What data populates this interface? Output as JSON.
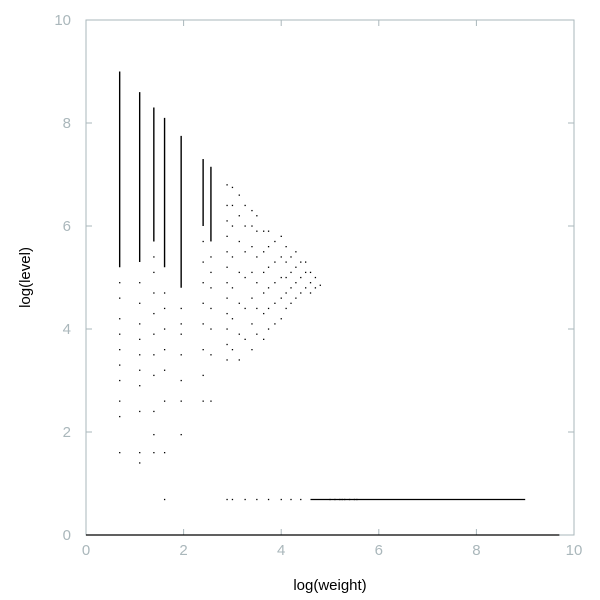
{
  "chart_data": {
    "type": "scatter",
    "title": "",
    "xlabel": "log(weight)",
    "ylabel": "log(level)",
    "xlim": [
      0,
      10
    ],
    "ylim": [
      0,
      10
    ],
    "xticks": [
      0,
      2,
      4,
      6,
      8,
      10
    ],
    "yticks": [
      0,
      2,
      4,
      6,
      8,
      10
    ],
    "x_tick_labels": [
      "0",
      "2",
      "4",
      "6",
      "8",
      "10"
    ],
    "y_tick_labels": [
      "0",
      "2",
      "4",
      "6",
      "8",
      "10"
    ],
    "grid": false,
    "legend": "none",
    "colors": {
      "points": "#000000",
      "frame": "#aab7bb",
      "tick_text": "#aab7bb"
    },
    "columns": [
      {
        "x": 0.69,
        "ymin": 5.2,
        "ymax": 9.0
      },
      {
        "x": 1.1,
        "ymin": 5.3,
        "ymax": 8.6
      },
      {
        "x": 1.39,
        "ymin": 5.7,
        "ymax": 8.3
      },
      {
        "x": 1.61,
        "ymin": 5.2,
        "ymax": 8.1
      },
      {
        "x": 1.95,
        "ymin": 4.8,
        "ymax": 7.75
      },
      {
        "x": 2.4,
        "ymin": 6.0,
        "ymax": 7.3
      },
      {
        "x": 2.56,
        "ymin": 5.7,
        "ymax": 7.15
      }
    ],
    "bands": [
      {
        "xmin": 4.6,
        "xmax": 9.0,
        "y": 0.69
      },
      {
        "xmin": 0.0,
        "xmax": 9.7,
        "y": 0.0
      }
    ],
    "sparse_points": [
      [
        0.69,
        1.6
      ],
      [
        0.69,
        2.3
      ],
      [
        0.69,
        2.6
      ],
      [
        0.69,
        3.0
      ],
      [
        0.69,
        3.3
      ],
      [
        0.69,
        3.6
      ],
      [
        0.69,
        3.9
      ],
      [
        0.69,
        4.2
      ],
      [
        0.69,
        4.6
      ],
      [
        0.69,
        4.9
      ],
      [
        1.1,
        1.4
      ],
      [
        1.1,
        1.6
      ],
      [
        1.1,
        2.4
      ],
      [
        1.1,
        2.9
      ],
      [
        1.1,
        3.2
      ],
      [
        1.1,
        3.5
      ],
      [
        1.1,
        3.8
      ],
      [
        1.1,
        4.1
      ],
      [
        1.1,
        4.5
      ],
      [
        1.1,
        4.9
      ],
      [
        1.39,
        1.6
      ],
      [
        1.39,
        1.95
      ],
      [
        1.39,
        2.4
      ],
      [
        1.39,
        3.1
      ],
      [
        1.39,
        3.5
      ],
      [
        1.39,
        3.9
      ],
      [
        1.39,
        4.3
      ],
      [
        1.39,
        4.7
      ],
      [
        1.39,
        5.1
      ],
      [
        1.39,
        5.4
      ],
      [
        1.61,
        0.69
      ],
      [
        1.61,
        1.6
      ],
      [
        1.61,
        2.6
      ],
      [
        1.61,
        3.2
      ],
      [
        1.61,
        3.6
      ],
      [
        1.61,
        4.0
      ],
      [
        1.61,
        4.4
      ],
      [
        1.61,
        4.7
      ],
      [
        1.95,
        1.95
      ],
      [
        1.95,
        2.6
      ],
      [
        1.95,
        3.0
      ],
      [
        1.95,
        3.5
      ],
      [
        1.95,
        3.9
      ],
      [
        1.95,
        4.1
      ],
      [
        1.95,
        4.4
      ],
      [
        2.4,
        2.6
      ],
      [
        2.4,
        3.1
      ],
      [
        2.4,
        3.6
      ],
      [
        2.4,
        4.1
      ],
      [
        2.4,
        4.5
      ],
      [
        2.4,
        4.9
      ],
      [
        2.4,
        5.3
      ],
      [
        2.4,
        5.7
      ],
      [
        2.56,
        2.6
      ],
      [
        2.56,
        3.5
      ],
      [
        2.56,
        4.0
      ],
      [
        2.56,
        4.4
      ],
      [
        2.56,
        4.8
      ],
      [
        2.56,
        5.1
      ],
      [
        2.56,
        5.4
      ],
      [
        2.89,
        0.69
      ],
      [
        2.89,
        3.4
      ],
      [
        2.89,
        3.7
      ],
      [
        2.89,
        4.0
      ],
      [
        2.89,
        4.3
      ],
      [
        2.89,
        4.6
      ],
      [
        2.89,
        4.9
      ],
      [
        2.89,
        5.2
      ],
      [
        2.89,
        5.5
      ],
      [
        2.89,
        5.8
      ],
      [
        2.89,
        6.1
      ],
      [
        2.89,
        6.4
      ],
      [
        2.89,
        6.8
      ],
      [
        3.0,
        0.69
      ],
      [
        3.0,
        3.6
      ],
      [
        3.0,
        4.2
      ],
      [
        3.0,
        4.8
      ],
      [
        3.0,
        5.4
      ],
      [
        3.0,
        6.0
      ],
      [
        3.0,
        6.4
      ],
      [
        3.0,
        6.75
      ],
      [
        3.14,
        3.4
      ],
      [
        3.14,
        3.9
      ],
      [
        3.14,
        4.5
      ],
      [
        3.14,
        5.1
      ],
      [
        3.14,
        5.7
      ],
      [
        3.14,
        6.2
      ],
      [
        3.14,
        6.6
      ],
      [
        3.26,
        0.69
      ],
      [
        3.26,
        3.8
      ],
      [
        3.26,
        4.4
      ],
      [
        3.26,
        5.0
      ],
      [
        3.26,
        5.5
      ],
      [
        3.26,
        6.0
      ],
      [
        3.26,
        6.4
      ],
      [
        3.4,
        3.6
      ],
      [
        3.4,
        4.1
      ],
      [
        3.4,
        4.6
      ],
      [
        3.4,
        5.1
      ],
      [
        3.4,
        5.6
      ],
      [
        3.4,
        6.0
      ],
      [
        3.4,
        6.3
      ],
      [
        3.5,
        0.69
      ],
      [
        3.5,
        3.9
      ],
      [
        3.5,
        4.4
      ],
      [
        3.5,
        4.9
      ],
      [
        3.5,
        5.4
      ],
      [
        3.5,
        5.9
      ],
      [
        3.5,
        6.2
      ],
      [
        3.64,
        3.8
      ],
      [
        3.64,
        4.3
      ],
      [
        3.64,
        4.7
      ],
      [
        3.64,
        5.1
      ],
      [
        3.64,
        5.5
      ],
      [
        3.64,
        5.9
      ],
      [
        3.74,
        0.69
      ],
      [
        3.74,
        4.0
      ],
      [
        3.74,
        4.4
      ],
      [
        3.74,
        4.8
      ],
      [
        3.74,
        5.2
      ],
      [
        3.74,
        5.6
      ],
      [
        3.74,
        5.9
      ],
      [
        3.87,
        4.1
      ],
      [
        3.87,
        4.5
      ],
      [
        3.87,
        4.9
      ],
      [
        3.87,
        5.3
      ],
      [
        3.87,
        5.7
      ],
      [
        4.0,
        0.69
      ],
      [
        4.0,
        4.2
      ],
      [
        4.0,
        4.6
      ],
      [
        4.0,
        5.0
      ],
      [
        4.0,
        5.4
      ],
      [
        4.0,
        5.8
      ],
      [
        4.1,
        4.4
      ],
      [
        4.1,
        4.7
      ],
      [
        4.1,
        5.0
      ],
      [
        4.1,
        5.3
      ],
      [
        4.1,
        5.6
      ],
      [
        4.2,
        0.69
      ],
      [
        4.2,
        4.5
      ],
      [
        4.2,
        4.8
      ],
      [
        4.2,
        5.1
      ],
      [
        4.2,
        5.4
      ],
      [
        4.3,
        4.6
      ],
      [
        4.3,
        4.9
      ],
      [
        4.3,
        5.2
      ],
      [
        4.3,
        5.5
      ],
      [
        4.4,
        0.69
      ],
      [
        4.4,
        4.7
      ],
      [
        4.4,
        5.0
      ],
      [
        4.4,
        5.3
      ],
      [
        4.5,
        4.8
      ],
      [
        4.5,
        5.1
      ],
      [
        4.5,
        5.3
      ],
      [
        4.6,
        4.7
      ],
      [
        4.6,
        4.9
      ],
      [
        4.6,
        5.1
      ],
      [
        4.7,
        4.8
      ],
      [
        4.7,
        5.0
      ],
      [
        4.8,
        4.85
      ],
      [
        5.0,
        0.69
      ],
      [
        5.1,
        0.69
      ],
      [
        5.2,
        0.69
      ],
      [
        5.25,
        0.69
      ],
      [
        5.3,
        0.69
      ],
      [
        5.4,
        0.69
      ],
      [
        5.5,
        0.69
      ],
      [
        5.55,
        0.69
      ]
    ]
  }
}
